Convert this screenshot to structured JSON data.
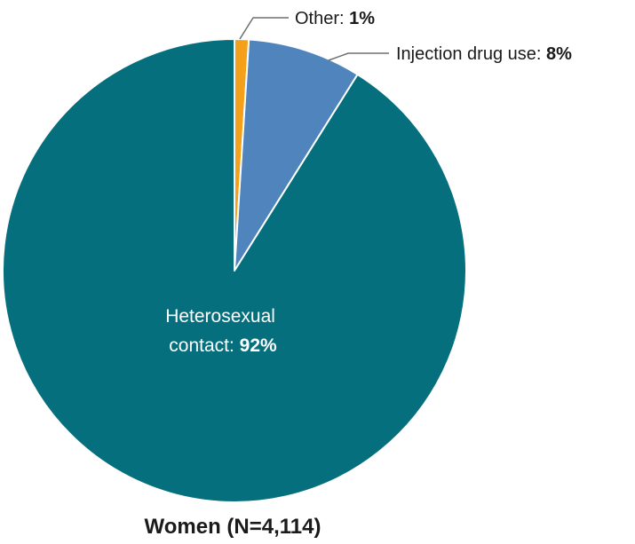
{
  "chart_data": {
    "type": "pie",
    "title": "Women (N=4,114)",
    "slices": [
      {
        "label": "Other:",
        "value_text": "1%",
        "value": 1,
        "color": "#f5a01a"
      },
      {
        "label": "Injection drug use:",
        "value_text": "8%",
        "value": 8,
        "color": "#4f84bd"
      },
      {
        "label_line1": "Heterosexual",
        "label_line2": "contact:",
        "value_text": "92%",
        "value": 92,
        "color": "#056f7d"
      }
    ]
  }
}
